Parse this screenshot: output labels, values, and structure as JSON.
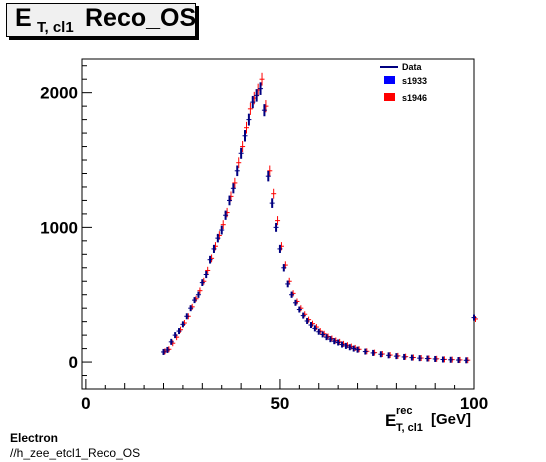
{
  "title": {
    "main": "E",
    "sub": "T, cl1",
    "rest": "Reco_OS"
  },
  "chart_data": {
    "type": "scatter",
    "xlabel": {
      "main": "E",
      "sup": "rec",
      "sub": "T, cl1",
      "unit": "[GeV]"
    },
    "ylabel": "",
    "xlim": [
      -1,
      100
    ],
    "ylim": [
      -200,
      2250
    ],
    "xticks": [
      0,
      50,
      100
    ],
    "yticks": [
      0,
      1000,
      2000
    ],
    "grid": false,
    "legend_position": "top-right",
    "legend": [
      {
        "label": "Data",
        "style": "line",
        "color": "#000080"
      },
      {
        "label": "s1933",
        "style": "box",
        "color": "#0000ff"
      },
      {
        "label": "s1946",
        "style": "box",
        "color": "#ff0000"
      }
    ],
    "series": [
      {
        "name": "s1946",
        "color": "#ff0000",
        "x": [
          20,
          21,
          22,
          23,
          24,
          25,
          26,
          27,
          28,
          29,
          30,
          31,
          32,
          33,
          34,
          35,
          36,
          37,
          38,
          39,
          40,
          41,
          42,
          43,
          44,
          45,
          46,
          47,
          48,
          49,
          50,
          51,
          52,
          53,
          54,
          55,
          56,
          57,
          58,
          59,
          60,
          61,
          62,
          63,
          64,
          65,
          66,
          67,
          68,
          69,
          70,
          72,
          74,
          76,
          78,
          80,
          82,
          84,
          86,
          88,
          90,
          92,
          94,
          96,
          98,
          100
        ],
        "values": [
          80,
          95,
          140,
          185,
          240,
          290,
          340,
          410,
          470,
          530,
          600,
          680,
          770,
          860,
          940,
          1020,
          1110,
          1230,
          1330,
          1480,
          1600,
          1740,
          1880,
          1960,
          2020,
          2100,
          1900,
          1420,
          1250,
          1050,
          860,
          720,
          600,
          510,
          450,
          400,
          355,
          315,
          285,
          260,
          230,
          210,
          190,
          175,
          160,
          150,
          135,
          125,
          115,
          105,
          95,
          80,
          70,
          60,
          52,
          46,
          40,
          34,
          30,
          27,
          24,
          20,
          18,
          16,
          14,
          320
        ]
      },
      {
        "name": "Data",
        "color": "#000080",
        "x": [
          20,
          21,
          22,
          23,
          24,
          25,
          26,
          27,
          28,
          29,
          30,
          31,
          32,
          33,
          34,
          35,
          36,
          37,
          38,
          39,
          40,
          41,
          42,
          43,
          44,
          45,
          46,
          47,
          48,
          49,
          50,
          51,
          52,
          53,
          54,
          55,
          56,
          57,
          58,
          59,
          60,
          61,
          62,
          63,
          64,
          65,
          66,
          67,
          68,
          69,
          70,
          72,
          74,
          76,
          78,
          80,
          82,
          84,
          86,
          88,
          90,
          92,
          94,
          96,
          98,
          100
        ],
        "values": [
          75,
          90,
          150,
          200,
          230,
          280,
          340,
          400,
          460,
          500,
          590,
          650,
          760,
          840,
          920,
          980,
          1090,
          1200,
          1290,
          1420,
          1550,
          1680,
          1800,
          1930,
          1980,
          2030,
          1870,
          1380,
          1180,
          1000,
          840,
          700,
          580,
          500,
          440,
          390,
          345,
          305,
          275,
          250,
          225,
          205,
          185,
          170,
          155,
          145,
          130,
          120,
          110,
          100,
          92,
          78,
          68,
          58,
          50,
          44,
          38,
          33,
          29,
          26,
          23,
          19,
          17,
          15,
          13,
          330
        ]
      }
    ]
  },
  "footer": {
    "line1": "Electron",
    "line2": "//h_zee_etcl1_Reco_OS"
  }
}
